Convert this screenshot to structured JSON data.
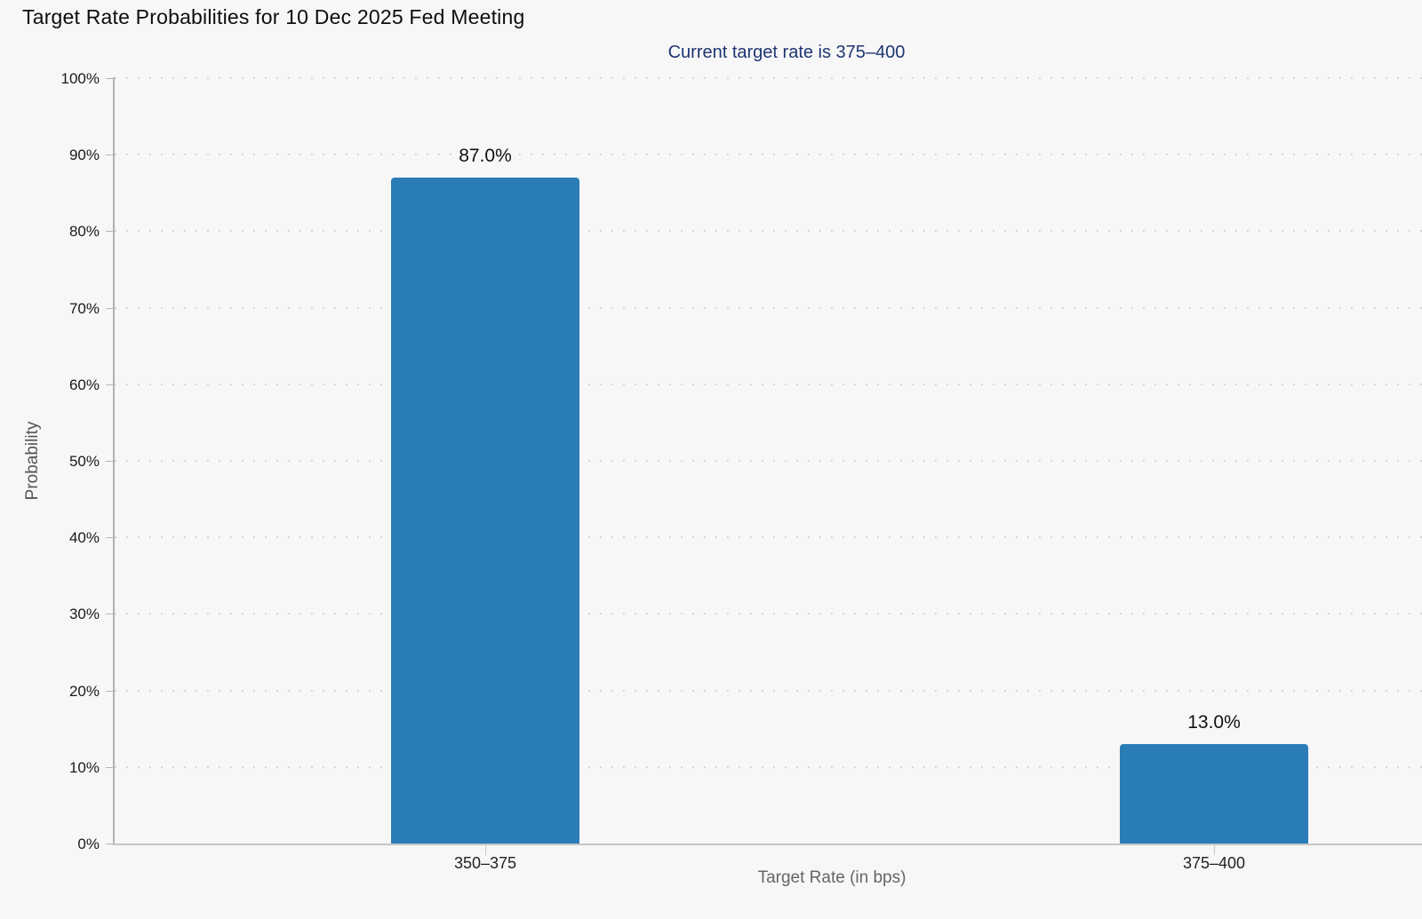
{
  "chart_data": {
    "type": "bar",
    "title": "Target Rate Probabilities for 10 Dec 2025 Fed Meeting",
    "subtitle": "Current target rate is 375–400",
    "xlabel": "Target Rate (in bps)",
    "ylabel": "Probability",
    "categories": [
      "350–375",
      "375–400"
    ],
    "values": [
      87.0,
      13.0
    ],
    "value_labels": [
      "87.0%",
      "13.0%"
    ],
    "ylim": [
      0,
      100
    ],
    "ytick_step": 10,
    "ytick_labels": [
      "0%",
      "10%",
      "20%",
      "30%",
      "40%",
      "50%",
      "60%",
      "70%",
      "80%",
      "90%",
      "100%"
    ],
    "grid": "dotted-horizontal",
    "legend": "none",
    "colors": {
      "bar": "#2b7db8",
      "subtitle_text": "#1e3572",
      "background": "#f7f7f7",
      "gridline": "#d6d6d6",
      "axis": "#b8b8b8",
      "axis_title": "#666666",
      "tick_label": "#1a1a1a"
    }
  }
}
